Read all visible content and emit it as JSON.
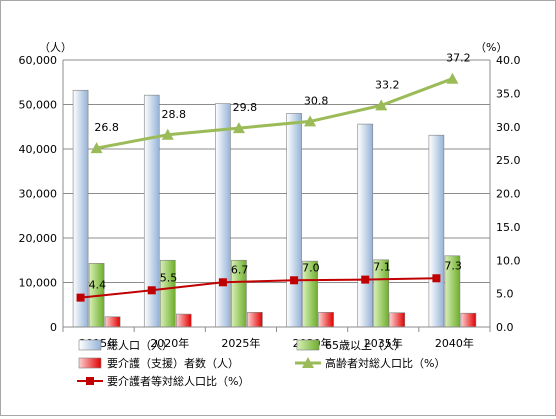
{
  "chart_data": {
    "type": "bar",
    "title": "",
    "categories": [
      "2015年",
      "2020年",
      "2025年",
      "2030年",
      "2035年",
      "2040年"
    ],
    "y_left": {
      "unit": "（人）",
      "min": 0,
      "max": 60000,
      "step": 10000,
      "ticks": [
        "0",
        "10,000",
        "20,000",
        "30,000",
        "40,000",
        "50,000",
        "60,000"
      ]
    },
    "y_right": {
      "unit": "（%）",
      "min": 0,
      "max": 40,
      "step": 5,
      "ticks": [
        "0.0",
        "5.0",
        "10.0",
        "15.0",
        "20.0",
        "25.0",
        "30.0",
        "35.0",
        "40.0"
      ]
    },
    "grid": true,
    "legend_position": "bottom",
    "series": [
      {
        "name": "総人口（人）",
        "type": "bar",
        "axis": "left",
        "color": "#95b3d7",
        "values": [
          53200,
          52100,
          50200,
          48000,
          45600,
          43100
        ]
      },
      {
        "name": "65歳以上（人）",
        "type": "bar",
        "axis": "left",
        "color": "#92d050",
        "values": [
          14300,
          15000,
          15000,
          14800,
          15100,
          16000
        ]
      },
      {
        "name": "要介護（支援）者数（人）",
        "type": "bar",
        "axis": "left",
        "color": "#ff4d4d",
        "values": [
          2300,
          2900,
          3300,
          3300,
          3200,
          3100
        ]
      },
      {
        "name": "高齢者対総人口比（%）",
        "type": "line",
        "axis": "right",
        "color": "#9bbb59",
        "marker": "triangle",
        "values": [
          26.8,
          28.8,
          29.8,
          30.8,
          33.2,
          37.2
        ],
        "labels": [
          "26.8",
          "28.8",
          "29.8",
          "30.8",
          "33.2",
          "37.2"
        ]
      },
      {
        "name": "要介護者等対総人口比（%）",
        "type": "line",
        "axis": "right",
        "color": "#c00000",
        "marker": "square",
        "values": [
          4.4,
          5.5,
          6.7,
          7.0,
          7.1,
          7.3
        ],
        "labels": [
          "4.4",
          "5.5",
          "6.7",
          "7.0",
          "7.1",
          "7.3"
        ]
      }
    ]
  }
}
